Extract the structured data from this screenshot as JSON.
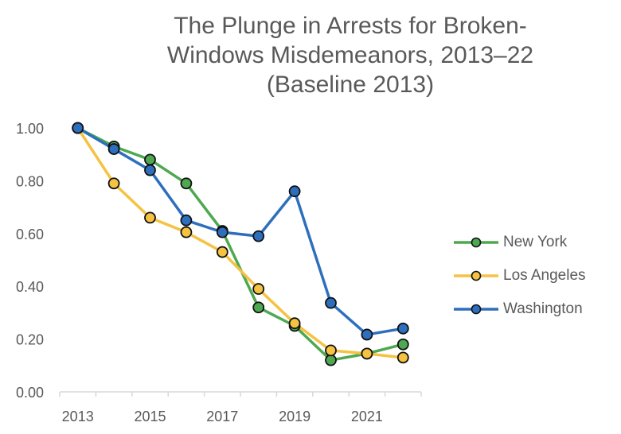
{
  "chart_data": {
    "type": "line",
    "title": [
      "The Plunge in Arrests for Broken-",
      "Windows Misdemeanors, 2013–22",
      "(Baseline 2013)"
    ],
    "xlabel": "",
    "ylabel": "",
    "x": [
      2013,
      2014,
      2015,
      2016,
      2017,
      2018,
      2019,
      2020,
      2021,
      2022
    ],
    "x_tick_labels": [
      "2013",
      "2015",
      "2017",
      "2019",
      "2021"
    ],
    "y_tick_labels": [
      "0.00",
      "0.20",
      "0.40",
      "0.60",
      "0.80",
      "1.00"
    ],
    "ylim": [
      0,
      1
    ],
    "grid": false,
    "legend_position": "right",
    "series": [
      {
        "name": "New York",
        "color": "#4ea851",
        "values": [
          1.0,
          0.93,
          0.88,
          0.79,
          0.61,
          0.32,
          0.25,
          0.12,
          0.145,
          0.18
        ]
      },
      {
        "name": "Los Angeles",
        "color": "#f5c242",
        "values": [
          1.0,
          0.79,
          0.66,
          0.605,
          0.53,
          0.39,
          0.26,
          0.157,
          0.145,
          0.13
        ]
      },
      {
        "name": "Washington",
        "color": "#2e6fbd",
        "values": [
          1.0,
          0.92,
          0.84,
          0.65,
          0.605,
          0.59,
          0.76,
          0.337,
          0.217,
          0.24
        ]
      }
    ]
  }
}
